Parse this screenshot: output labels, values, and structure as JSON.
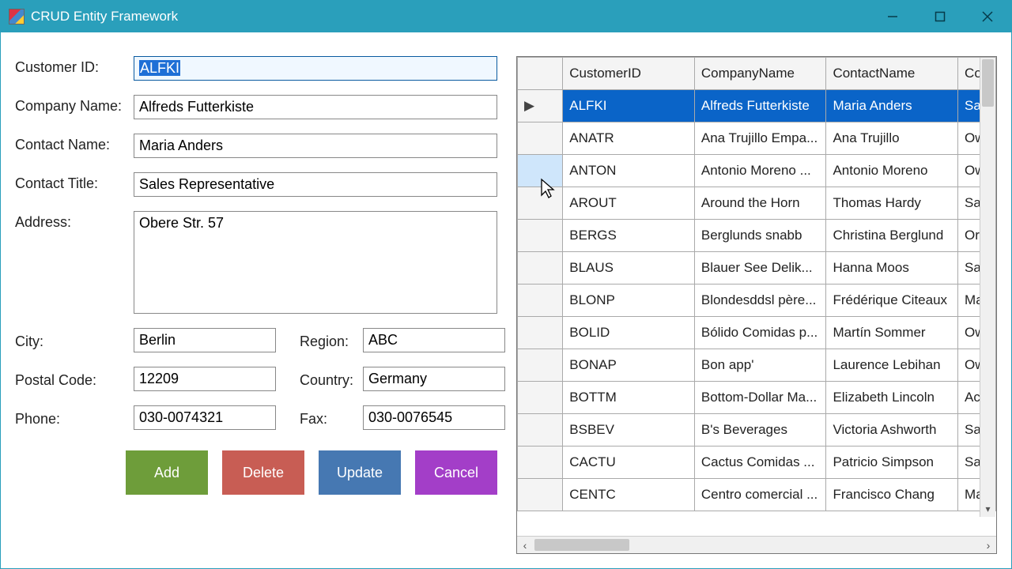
{
  "window": {
    "title": "CRUD Entity Framework"
  },
  "form": {
    "labels": {
      "customer_id": "Customer ID:",
      "company_name": "Company Name:",
      "contact_name": "Contact Name:",
      "contact_title": "Contact Title:",
      "address": "Address:",
      "city": "City:",
      "region": "Region:",
      "postal_code": "Postal Code:",
      "country": "Country:",
      "phone": "Phone:",
      "fax": "Fax:"
    },
    "values": {
      "customer_id": "ALFKI",
      "company_name": "Alfreds Futterkiste",
      "contact_name": "Maria Anders",
      "contact_title": "Sales Representative",
      "address": "Obere Str. 57",
      "city": "Berlin",
      "region": "ABC",
      "postal_code": "12209",
      "country": "Germany",
      "phone": "030-0074321",
      "fax": "030-0076545"
    }
  },
  "buttons": {
    "add": "Add",
    "delete": "Delete",
    "update": "Update",
    "cancel": "Cancel"
  },
  "grid": {
    "headers": {
      "customer_id": "CustomerID",
      "company_name": "CompanyName",
      "contact_name": "ContactName",
      "contact_title": "Co"
    },
    "rows": [
      {
        "selected": true,
        "hover": false,
        "cust": "ALFKI",
        "comp": "Alfreds Futterkiste",
        "cont": "Maria Anders",
        "title": "Sa"
      },
      {
        "selected": false,
        "hover": false,
        "cust": "ANATR",
        "comp": "Ana Trujillo Empa...",
        "cont": "Ana Trujillo",
        "title": "Ow"
      },
      {
        "selected": false,
        "hover": true,
        "cust": "ANTON",
        "comp": "Antonio Moreno ...",
        "cont": "Antonio Moreno",
        "title": "Ow"
      },
      {
        "selected": false,
        "hover": false,
        "cust": "AROUT",
        "comp": "Around the Horn",
        "cont": "Thomas Hardy",
        "title": "Sa"
      },
      {
        "selected": false,
        "hover": false,
        "cust": "BERGS",
        "comp": "Berglunds snabb",
        "cont": "Christina Berglund",
        "title": "Or"
      },
      {
        "selected": false,
        "hover": false,
        "cust": "BLAUS",
        "comp": "Blauer See Delik...",
        "cont": "Hanna Moos",
        "title": "Sa"
      },
      {
        "selected": false,
        "hover": false,
        "cust": "BLONP",
        "comp": "Blondesddsl père...",
        "cont": "Frédérique Citeaux",
        "title": "Ma"
      },
      {
        "selected": false,
        "hover": false,
        "cust": "BOLID",
        "comp": "Bólido Comidas p...",
        "cont": "Martín Sommer",
        "title": "Ow"
      },
      {
        "selected": false,
        "hover": false,
        "cust": "BONAP",
        "comp": "Bon app'",
        "cont": "Laurence Lebihan",
        "title": "Ow"
      },
      {
        "selected": false,
        "hover": false,
        "cust": "BOTTM",
        "comp": "Bottom-Dollar Ma...",
        "cont": "Elizabeth Lincoln",
        "title": "Ac"
      },
      {
        "selected": false,
        "hover": false,
        "cust": "BSBEV",
        "comp": "B's Beverages",
        "cont": "Victoria Ashworth",
        "title": "Sa"
      },
      {
        "selected": false,
        "hover": false,
        "cust": "CACTU",
        "comp": "Cactus Comidas ...",
        "cont": "Patricio Simpson",
        "title": "Sa"
      },
      {
        "selected": false,
        "hover": false,
        "cust": "CENTC",
        "comp": "Centro comercial ...",
        "cont": "Francisco Chang",
        "title": "Ma"
      }
    ]
  },
  "colors": {
    "titlebar": "#2a9fbb",
    "selection_bg": "#0a64c8",
    "btn_green": "#6e9d3a",
    "btn_red": "#c85d54",
    "btn_blue": "#4678b2",
    "btn_purple": "#a33ec8"
  }
}
